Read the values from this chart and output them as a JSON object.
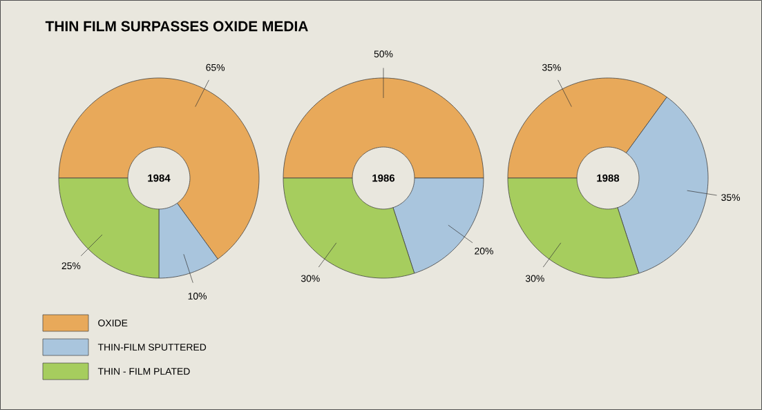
{
  "chart_data": [
    {
      "type": "donut",
      "title": "THIN FILM SURPASSES OXIDE MEDIA",
      "subtitle": "1984",
      "categories": [
        "OXIDE",
        "THIN-FILM SPUTTERED",
        "THIN - FILM PLATED"
      ],
      "values": [
        65,
        10,
        25
      ],
      "colors": [
        "#e8a95a",
        "#a9c5dd",
        "#a6cd5e"
      ],
      "value_labels": [
        "65%",
        "10%",
        "25%"
      ],
      "legend": "bottom left"
    },
    {
      "type": "donut",
      "subtitle": "1986",
      "values": [
        50,
        20,
        30
      ],
      "colors": [
        "#e8a95a",
        "#a9c5dd",
        "#a6cd5e"
      ],
      "value_labels": [
        "50%",
        "20%",
        "30%"
      ]
    },
    {
      "type": "donut",
      "subtitle": "1988",
      "values": [
        35,
        35,
        30
      ],
      "colors": [
        "#e8a95a",
        "#a9c5dd",
        "#a6cd5e"
      ],
      "value_labels": [
        "35%",
        "35%",
        "30%"
      ]
    }
  ]
}
